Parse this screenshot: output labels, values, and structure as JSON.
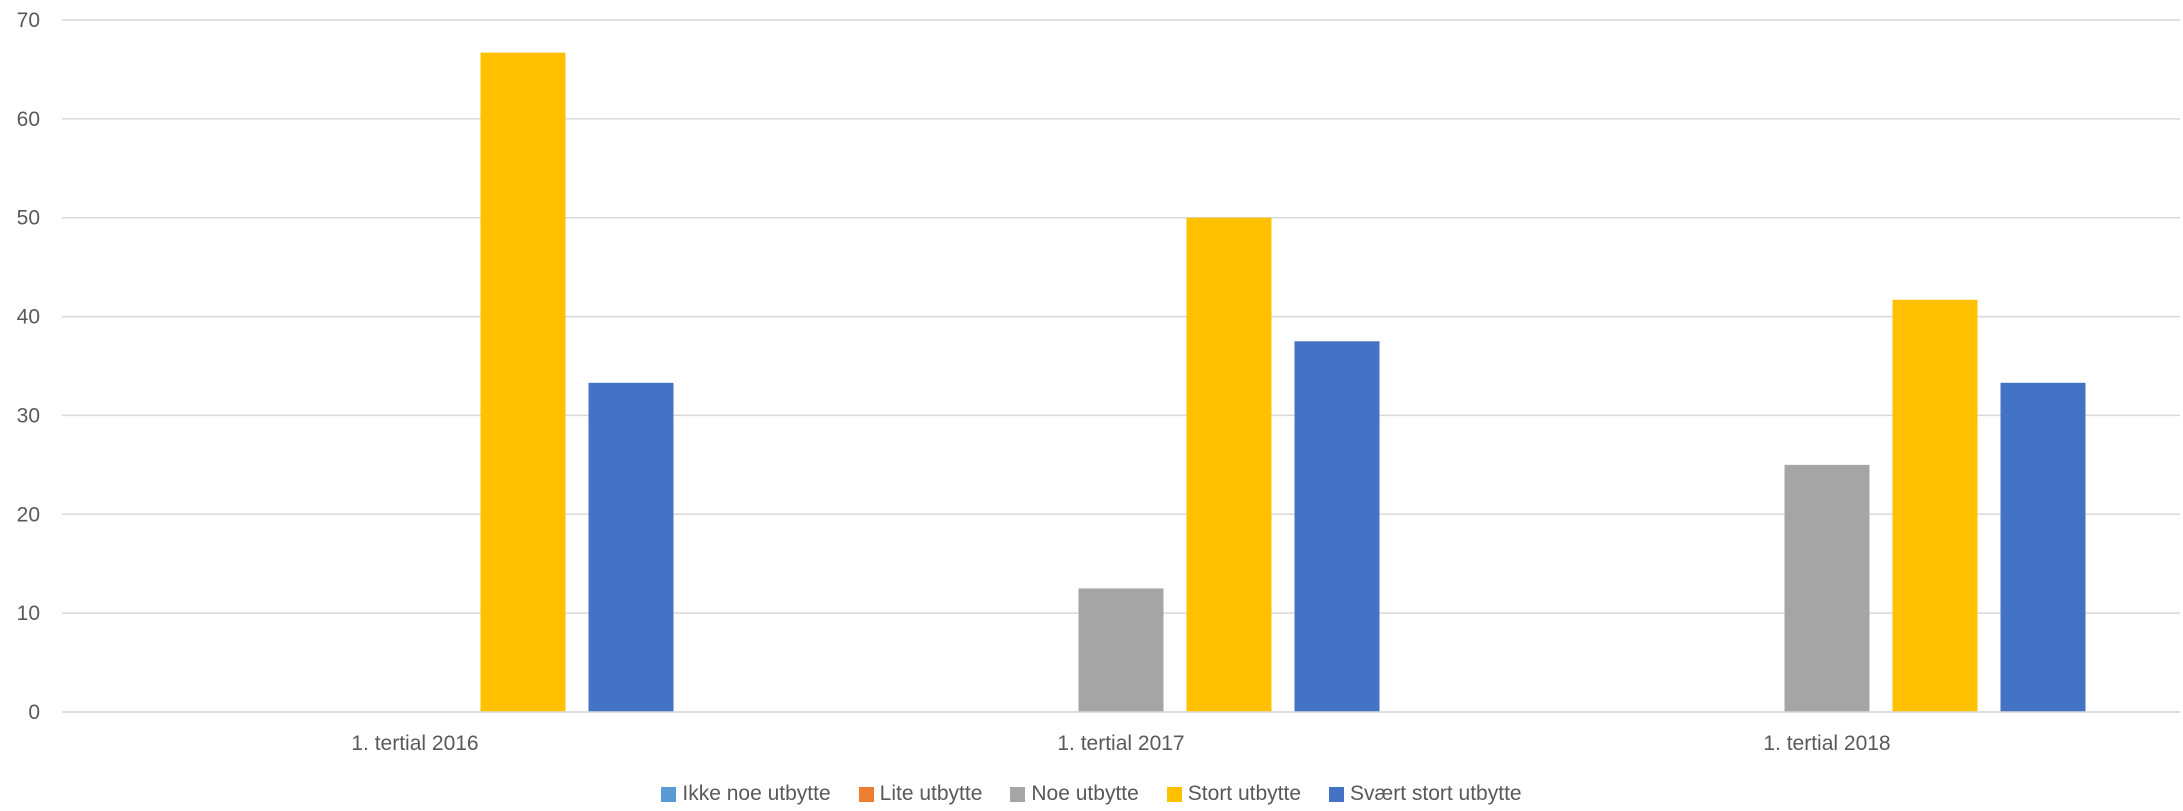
{
  "chart_data": {
    "type": "bar",
    "categories": [
      "1. tertial 2016",
      "1. tertial 2017",
      "1. tertial 2018"
    ],
    "series": [
      {
        "name": "Ikke noe utbytte",
        "color": "#5B9BD5",
        "values": [
          0,
          0,
          0
        ]
      },
      {
        "name": "Lite utbytte",
        "color": "#ED7D31",
        "values": [
          0,
          0,
          0
        ]
      },
      {
        "name": "Noe utbytte",
        "color": "#A5A5A5",
        "values": [
          0,
          12.5,
          25
        ]
      },
      {
        "name": "Stort utbytte",
        "color": "#FFC000",
        "values": [
          66.7,
          50,
          41.7
        ]
      },
      {
        "name": "Svært stort utbytte",
        "color": "#4472C4",
        "values": [
          33.3,
          37.5,
          33.3
        ]
      }
    ],
    "yticks": [
      "0",
      "10",
      "20",
      "30",
      "40",
      "50",
      "60",
      "70"
    ],
    "ylim": [
      0,
      70
    ],
    "grid": true,
    "legend": "bottom"
  }
}
